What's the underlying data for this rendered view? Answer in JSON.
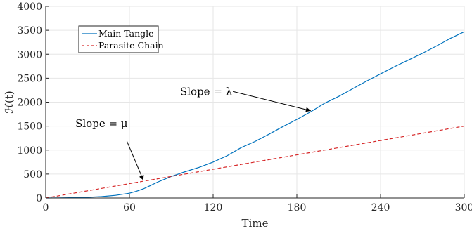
{
  "chart_data": {
    "type": "line",
    "xlabel": "Time",
    "ylabel": "ℋ(t)",
    "xlim": [
      0,
      300
    ],
    "ylim": [
      0,
      4000
    ],
    "xticks": [
      0,
      60,
      120,
      180,
      240,
      300
    ],
    "yticks": [
      0,
      500,
      1000,
      1500,
      2000,
      2500,
      3000,
      3500,
      4000
    ],
    "grid": true,
    "legend_position": "top-left",
    "series": [
      {
        "name": "Main Tangle",
        "color": "#0072bd",
        "style": "solid",
        "x": [
          0,
          10,
          20,
          30,
          40,
          50,
          60,
          65,
          70,
          75,
          80,
          85,
          90,
          95,
          100,
          110,
          120,
          130,
          140,
          150,
          160,
          170,
          180,
          190,
          200,
          210,
          220,
          230,
          240,
          250,
          260,
          270,
          280,
          290,
          300
        ],
        "y": [
          0,
          3,
          8,
          15,
          30,
          55,
          100,
          140,
          190,
          260,
          330,
          390,
          450,
          500,
          550,
          640,
          750,
          880,
          1050,
          1180,
          1330,
          1490,
          1640,
          1800,
          1980,
          2120,
          2280,
          2440,
          2590,
          2740,
          2880,
          3020,
          3170,
          3330,
          3470
        ]
      },
      {
        "name": "Parasite Chain",
        "color": "#d62728",
        "style": "dashed",
        "x": [
          0,
          300
        ],
        "y": [
          0,
          1500
        ]
      }
    ],
    "annotations": [
      {
        "label": "Slope = λ",
        "text_pos": [
          115,
          2150
        ],
        "arrow_to": [
          190,
          1820
        ]
      },
      {
        "label": "Slope = μ",
        "text_pos": [
          40,
          1480
        ],
        "arrow_to": [
          70,
          370
        ]
      }
    ]
  }
}
